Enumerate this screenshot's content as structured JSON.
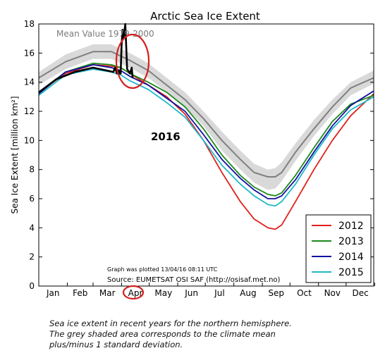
{
  "chart_data": {
    "type": "line",
    "title": "Arctic Sea Ice Extent",
    "ylabel": "Sea Ice Extent [million km²]",
    "xlabel": "",
    "ylim": [
      0,
      18
    ],
    "yticks": [
      0,
      2,
      4,
      6,
      8,
      10,
      12,
      14,
      16,
      18
    ],
    "months": [
      "Jan",
      "Feb",
      "Mar",
      "Apr",
      "May",
      "Jun",
      "Jul",
      "Aug",
      "Sep",
      "Oct",
      "Nov",
      "Dec"
    ],
    "grid": false,
    "legend_position": "bottom-right",
    "annotations": {
      "mean_label": "Mean Value 1979-2000",
      "year_label": "2016",
      "plotted": "Graph was plotted 13/04/16 08:11 UTC",
      "source": "Source: EUMETSAT OSI SAF (http://osisaf.met.no)"
    },
    "band": {
      "color": "#d9d9d9",
      "x": [
        1,
        30,
        60,
        80,
        90,
        100,
        120,
        140,
        160,
        180,
        200,
        220,
        235,
        250,
        258,
        265,
        280,
        300,
        320,
        340,
        365
      ],
      "upper": [
        14.7,
        15.9,
        16.6,
        16.6,
        16.3,
        16.0,
        15.3,
        14.3,
        13.3,
        12.0,
        10.6,
        9.3,
        8.4,
        8.0,
        8.1,
        8.5,
        9.8,
        11.4,
        12.8,
        14.0,
        14.8
      ],
      "lower": [
        13.8,
        14.9,
        15.6,
        15.6,
        15.3,
        15.0,
        14.3,
        13.3,
        12.3,
        11.0,
        9.3,
        8.0,
        7.1,
        6.6,
        6.7,
        7.2,
        8.6,
        10.3,
        11.8,
        13.1,
        13.9
      ]
    },
    "series": [
      {
        "name": "",
        "color": "#808080",
        "width": 2,
        "x": [
          1,
          30,
          60,
          80,
          90,
          100,
          120,
          140,
          160,
          180,
          200,
          220,
          235,
          250,
          258,
          265,
          280,
          300,
          320,
          340,
          365
        ],
        "y": [
          14.3,
          15.4,
          16.1,
          16.1,
          15.8,
          15.5,
          14.8,
          13.8,
          12.8,
          11.5,
          10.0,
          8.7,
          7.8,
          7.5,
          7.5,
          7.8,
          9.2,
          10.8,
          12.3,
          13.6,
          14.3
        ]
      },
      {
        "name": "2012",
        "color": "#e0201b",
        "width": 1.8,
        "x": [
          1,
          30,
          60,
          80,
          90,
          100,
          120,
          140,
          160,
          180,
          200,
          220,
          235,
          250,
          258,
          265,
          280,
          300,
          320,
          340,
          365
        ],
        "y": [
          13.3,
          14.6,
          15.2,
          15.1,
          15.0,
          14.6,
          13.8,
          13.0,
          11.8,
          10.0,
          7.8,
          5.8,
          4.6,
          4.0,
          3.9,
          4.2,
          5.8,
          8.0,
          10.0,
          11.7,
          13.2
        ]
      },
      {
        "name": "2013",
        "color": "#1c8a1c",
        "width": 1.8,
        "x": [
          1,
          30,
          60,
          80,
          90,
          100,
          120,
          140,
          160,
          180,
          200,
          220,
          235,
          250,
          258,
          265,
          280,
          300,
          320,
          340,
          365
        ],
        "y": [
          13.3,
          14.7,
          15.3,
          15.2,
          15.0,
          14.6,
          14.0,
          13.3,
          12.3,
          10.8,
          9.0,
          7.6,
          6.8,
          6.3,
          6.2,
          6.4,
          7.6,
          9.5,
          11.3,
          12.5,
          13.1
        ]
      },
      {
        "name": "2014",
        "color": "#1010a0",
        "width": 1.8,
        "x": [
          1,
          30,
          60,
          80,
          90,
          100,
          120,
          140,
          160,
          180,
          200,
          220,
          235,
          250,
          258,
          265,
          280,
          300,
          320,
          340,
          365
        ],
        "y": [
          13.2,
          14.7,
          15.2,
          15.0,
          14.8,
          14.4,
          13.8,
          12.9,
          12.0,
          10.4,
          8.7,
          7.4,
          6.6,
          6.0,
          6.0,
          6.2,
          7.3,
          9.2,
          11.0,
          12.4,
          13.4
        ]
      },
      {
        "name": "2015",
        "color": "#20b8c8",
        "width": 1.8,
        "x": [
          1,
          30,
          60,
          80,
          90,
          100,
          120,
          140,
          160,
          180,
          200,
          220,
          235,
          250,
          258,
          265,
          280,
          300,
          320,
          340,
          365
        ],
        "y": [
          13.1,
          14.5,
          14.9,
          14.7,
          14.5,
          14.1,
          13.5,
          12.6,
          11.6,
          10.0,
          8.3,
          7.0,
          6.2,
          5.6,
          5.5,
          5.8,
          7.0,
          9.0,
          10.8,
          12.1,
          13.0
        ]
      },
      {
        "name": "",
        "color": "#000000",
        "width": 2.6,
        "x": [
          1,
          20,
          40,
          60,
          75,
          82,
          84,
          86,
          88,
          89,
          90,
          91,
          92,
          93,
          95,
          97,
          100,
          102,
          103
        ],
        "y": [
          13.3,
          14.2,
          14.7,
          15.0,
          14.8,
          14.7,
          15.0,
          14.6,
          14.8,
          14.6,
          14.6,
          16.5,
          17.6,
          17.0,
          18.0,
          14.9,
          14.6,
          15.0,
          14.3
        ]
      }
    ]
  },
  "caption": {
    "line1": "Sea ice extent in recent years for the northern hemisphere.",
    "line2": "The grey shaded area corresponds to the climate mean",
    "line3": "plus/minus 1 standard deviation."
  }
}
